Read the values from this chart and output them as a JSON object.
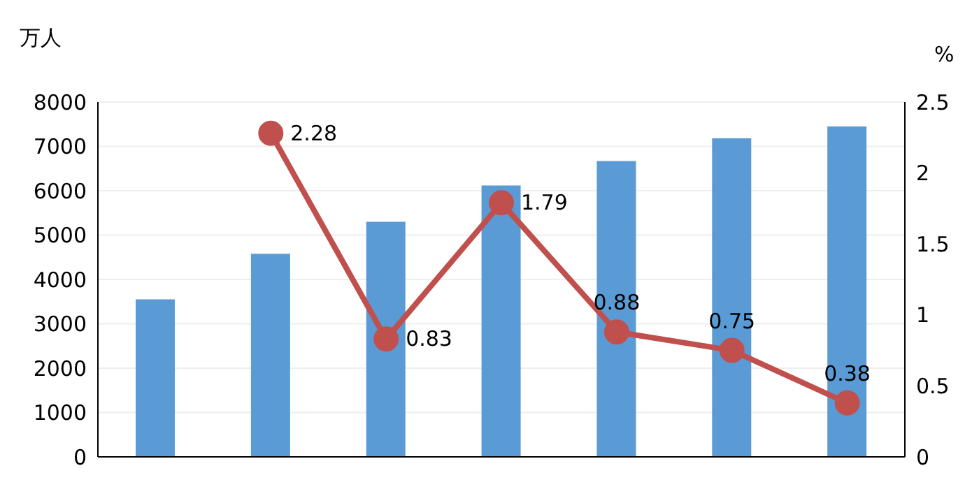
{
  "chart_data": {
    "type": "bar",
    "ylabel": "万人",
    "y2label": "%",
    "categories": [
      null,
      null,
      null,
      null,
      null,
      null,
      null
    ],
    "series": [
      {
        "color": "#5b9bd5",
        "values": [
          3550,
          4580,
          5300,
          6120,
          6670,
          7180,
          7450
        ]
      },
      {
        "type": "line",
        "axis": "y2",
        "color": "#c0504d",
        "marker": "circle",
        "values": [
          null,
          2.28,
          0.83,
          1.79,
          0.88,
          0.75,
          0.38
        ],
        "value_labels": [
          null,
          "2.28",
          "0.83",
          "1.79",
          "0.88",
          "0.75",
          "0.38"
        ]
      }
    ],
    "ylim": [
      0,
      8000
    ],
    "yticks": [
      0,
      1000,
      2000,
      3000,
      4000,
      5000,
      6000,
      7000,
      8000
    ],
    "y2lim": [
      0,
      2.5
    ],
    "y2ticks": [
      0,
      0.5,
      1,
      1.5,
      2,
      2.5
    ],
    "grid": "y"
  }
}
